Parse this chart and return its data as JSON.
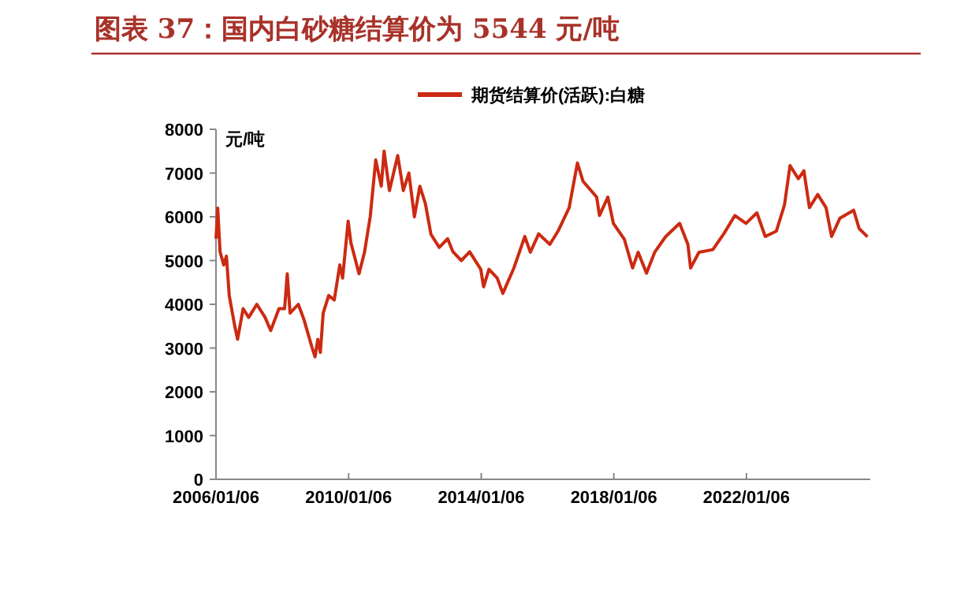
{
  "chart_data": {
    "type": "line",
    "title": "图表 37：国内白砂糖结算价为 5544 元/吨",
    "ylabel": "元/吨",
    "legend": "top",
    "grid": false,
    "marker": "none",
    "line_style": "solid",
    "x": [
      "2006-01-06",
      "2006-01-25",
      "2006-02-20",
      "2006-04",
      "2006-05",
      "2006-06",
      "2006-08",
      "2006-09",
      "2006-11",
      "2007-01",
      "2007-04",
      "2007-07",
      "2007-09",
      "2007-12",
      "2008-02",
      "2008-03",
      "2008-04",
      "2008-07",
      "2008-09",
      "2008-12",
      "2009-01",
      "2009-02",
      "2009-03",
      "2009-04",
      "2009-06",
      "2009-08",
      "2009-10",
      "2009-11",
      "2010-01",
      "2010-02",
      "2010-05",
      "2010-07",
      "2010-09",
      "2010-11",
      "2011-01",
      "2011-02",
      "2011-04",
      "2011-07",
      "2011-09",
      "2011-11",
      "2012-01",
      "2012-03",
      "2012-05",
      "2012-07",
      "2012-10",
      "2013-01",
      "2013-03",
      "2013-06",
      "2013-09",
      "2014-01",
      "2014-02",
      "2014-04",
      "2014-07",
      "2014-09",
      "2015-01",
      "2015-05",
      "2015-07",
      "2015-10",
      "2016-02",
      "2016-05",
      "2016-09",
      "2016-12",
      "2017-02",
      "2017-07",
      "2017-08",
      "2017-11",
      "2018-01",
      "2018-05",
      "2018-08",
      "2018-10",
      "2019-01",
      "2019-04",
      "2019-08",
      "2020-01",
      "2020-04",
      "2020-05",
      "2020-08",
      "2021-01",
      "2021-05",
      "2021-09",
      "2022-01",
      "2022-05",
      "2022-08",
      "2022-12",
      "2023-03",
      "2023-05",
      "2023-08",
      "2023-10",
      "2023-12",
      "2024-03",
      "2024-06",
      "2024-08",
      "2024-11",
      "2025-04",
      "2025-06",
      "2025-09"
    ],
    "series": [
      {
        "name": "期货结算价(活跃):白糖",
        "color": "#cc2a12",
        "values": [
          5500,
          6200,
          5200,
          4900,
          5100,
          4200,
          3500,
          3200,
          3900,
          3700,
          4000,
          3700,
          3400,
          3900,
          3900,
          4700,
          3800,
          4000,
          3650,
          3000,
          2800,
          3200,
          2900,
          3800,
          4200,
          4100,
          4900,
          4600,
          5900,
          5400,
          4700,
          5200,
          6000,
          7300,
          6700,
          7500,
          6600,
          7400,
          6600,
          7000,
          6000,
          6700,
          6300,
          5600,
          5300,
          5500,
          5200,
          5000,
          5200,
          4800,
          4400,
          4800,
          4600,
          4250,
          4830,
          5550,
          5190,
          5610,
          5370,
          5670,
          6210,
          7230,
          6810,
          6450,
          6030,
          6450,
          5850,
          5490,
          4830,
          5190,
          4710,
          5190,
          5550,
          5850,
          5370,
          4830,
          5190,
          5250,
          5610,
          6030,
          5850,
          6090,
          5550,
          5670,
          6270,
          7170,
          6870,
          7050,
          6210,
          6510,
          6210,
          5550,
          5970,
          6150,
          5730,
          5544
        ]
      }
    ],
    "xlim": [
      "2006-01-06",
      "2025-10"
    ],
    "xticks": [
      {
        "value": "2006-01-06",
        "label": "2006/01/06"
      },
      {
        "value": "2010-01-06",
        "label": "2010/01/06"
      },
      {
        "value": "2014-01-06",
        "label": "2014/01/06"
      },
      {
        "value": "2018-01-06",
        "label": "2018/01/06"
      },
      {
        "value": "2022-01-06",
        "label": "2022/01/06"
      }
    ],
    "ylim": [
      0,
      8000
    ],
    "yticks": [
      0,
      1000,
      2000,
      3000,
      4000,
      5000,
      6000,
      7000,
      8000
    ]
  }
}
